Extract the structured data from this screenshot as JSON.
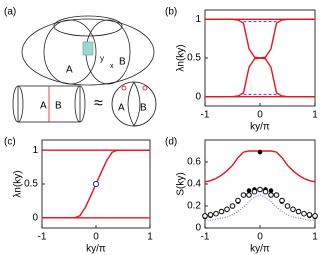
{
  "diagram": {
    "label": "(a)",
    "texts": [
      "A",
      "B",
      "y",
      "x",
      "A",
      "B",
      "≈",
      "A",
      "B"
    ]
  },
  "chart_data": [
    {
      "type": "line",
      "label": "(b)",
      "xlabel": "ky/π",
      "ylabel": "λn(ky)",
      "x": [
        -1,
        -0.9,
        -0.8,
        -0.7,
        -0.6,
        -0.5,
        -0.4,
        -0.3,
        -0.2,
        -0.1,
        0,
        0.1,
        0.2,
        0.3,
        0.4,
        0.5,
        0.6,
        0.7,
        0.8,
        0.9,
        1
      ],
      "xlim": [
        -1,
        1
      ],
      "xticks": [
        -1,
        0,
        1
      ],
      "ylim": [
        -0.12,
        1.12
      ],
      "yticks": [
        0,
        0.5,
        1
      ],
      "series": [
        {
          "color": "#e8141b",
          "style": "line",
          "values": [
            1,
            1,
            1,
            1,
            1,
            1,
            1,
            1,
            1,
            1,
            1,
            1,
            1,
            1,
            1,
            1,
            1,
            1,
            1,
            1,
            1
          ]
        },
        {
          "color": "#e8141b",
          "style": "line",
          "values": [
            1,
            1,
            1,
            1,
            1,
            1,
            0.99,
            0.95,
            0.62,
            0.51,
            0.5,
            0.51,
            0.62,
            0.95,
            0.99,
            1,
            1,
            1,
            1,
            1,
            1
          ]
        },
        {
          "color": "#e8141b",
          "style": "line",
          "values": [
            0,
            0,
            0,
            0,
            0,
            0,
            0.01,
            0.05,
            0.38,
            0.49,
            0.5,
            0.49,
            0.38,
            0.05,
            0.01,
            0,
            0,
            0,
            0,
            0,
            0
          ]
        },
        {
          "color": "#e8141b",
          "style": "line",
          "values": [
            0,
            0,
            0,
            0,
            0,
            0,
            0,
            0,
            0,
            0,
            0,
            0,
            0,
            0,
            0,
            0,
            0,
            0,
            0,
            0,
            0
          ]
        },
        {
          "color": "#7b2fd1",
          "style": "dashed",
          "values": [
            null,
            null,
            null,
            null,
            null,
            null,
            null,
            0.97,
            0.97,
            0.97,
            0.97,
            0.97,
            0.97,
            0.97,
            null,
            null,
            null,
            null,
            null,
            null,
            null
          ]
        },
        {
          "color": "#7b2fd1",
          "style": "dashed",
          "values": [
            null,
            null,
            null,
            null,
            null,
            null,
            null,
            0.03,
            0.03,
            0.03,
            0.03,
            0.03,
            0.03,
            0.03,
            null,
            null,
            null,
            null,
            null,
            null,
            null
          ]
        }
      ]
    },
    {
      "type": "line",
      "label": "(c)",
      "xlabel": "ky/π",
      "ylabel": "λn(ky)",
      "x": [
        -1,
        -0.9,
        -0.8,
        -0.7,
        -0.6,
        -0.5,
        -0.4,
        -0.3,
        -0.2,
        -0.1,
        0,
        0.1,
        0.2,
        0.3,
        0.4,
        0.5,
        0.6,
        0.7,
        0.8,
        0.9,
        1
      ],
      "xlim": [
        -1,
        1
      ],
      "xticks": [
        -1,
        0,
        1
      ],
      "ylim": [
        -0.15,
        1.15
      ],
      "yticks": [
        0,
        0.5,
        1
      ],
      "series": [
        {
          "color": "#e8141b",
          "style": "line",
          "values": [
            1,
            1,
            1,
            1,
            1,
            1,
            1,
            1,
            1,
            1,
            1,
            1,
            1,
            1,
            1,
            1,
            1,
            1,
            1,
            1,
            1
          ]
        },
        {
          "color": "#e8141b",
          "style": "line",
          "values": [
            0,
            0,
            0,
            0,
            0,
            0,
            0,
            0.03,
            0.15,
            0.32,
            0.5,
            0.68,
            0.85,
            0.97,
            1,
            1,
            1,
            1,
            1,
            1,
            1
          ]
        },
        {
          "color": "#e8141b",
          "style": "line",
          "values": [
            0,
            0,
            0,
            0,
            0,
            0,
            0,
            0,
            0,
            0,
            0,
            0,
            0,
            0,
            0,
            0,
            0,
            0,
            0,
            0,
            0
          ]
        },
        {
          "color": "#2a2ad8",
          "style": "ring",
          "x": [
            0
          ],
          "values": [
            0.5
          ]
        }
      ]
    },
    {
      "type": "line",
      "label": "(d)",
      "xlabel": "ky/π",
      "ylabel": "S(ky)",
      "x": [
        -1,
        -0.9,
        -0.8,
        -0.7,
        -0.6,
        -0.5,
        -0.4,
        -0.3,
        -0.2,
        -0.1,
        0,
        0.1,
        0.2,
        0.3,
        0.4,
        0.5,
        0.6,
        0.7,
        0.8,
        0.9,
        1
      ],
      "xlim": [
        -1,
        1
      ],
      "xticks": [
        -1,
        0,
        1
      ],
      "ylim": [
        0,
        0.8
      ],
      "yticks": [
        0,
        0.2,
        0.4,
        0.6
      ],
      "series": [
        {
          "color": "#e8141b",
          "style": "line",
          "values": [
            0.42,
            0.43,
            0.45,
            0.48,
            0.52,
            0.57,
            0.64,
            0.69,
            0.7,
            0.7,
            0.7,
            0.7,
            0.7,
            0.69,
            0.64,
            0.57,
            0.52,
            0.48,
            0.45,
            0.43,
            0.42
          ]
        },
        {
          "color": "#6a6ae0",
          "style": "dotted",
          "values": [
            0.07,
            0.07,
            0.08,
            0.09,
            0.1,
            0.12,
            0.15,
            0.19,
            0.24,
            0.28,
            0.3,
            0.28,
            0.24,
            0.19,
            0.15,
            0.12,
            0.1,
            0.09,
            0.08,
            0.07,
            0.07
          ]
        },
        {
          "color": "#000000",
          "style": "dots",
          "values": [
            0.1,
            0.11,
            0.13,
            0.15,
            0.17,
            0.2,
            0.24,
            0.3,
            0.34,
            0.35,
            0.35,
            0.35,
            0.34,
            0.3,
            0.24,
            0.2,
            0.17,
            0.15,
            0.13,
            0.11,
            0.1
          ]
        },
        {
          "color": "#000000",
          "style": "circles",
          "values": [
            0.11,
            0.12,
            0.13,
            0.15,
            0.17,
            0.2,
            0.25,
            0.3,
            0.3,
            0.33,
            0.35,
            0.33,
            0.3,
            0.3,
            0.25,
            0.2,
            0.17,
            0.15,
            0.13,
            0.12,
            0.11
          ]
        },
        {
          "color": "#000000",
          "style": "dots",
          "x": [
            0
          ],
          "values": [
            0.69
          ]
        }
      ]
    }
  ]
}
